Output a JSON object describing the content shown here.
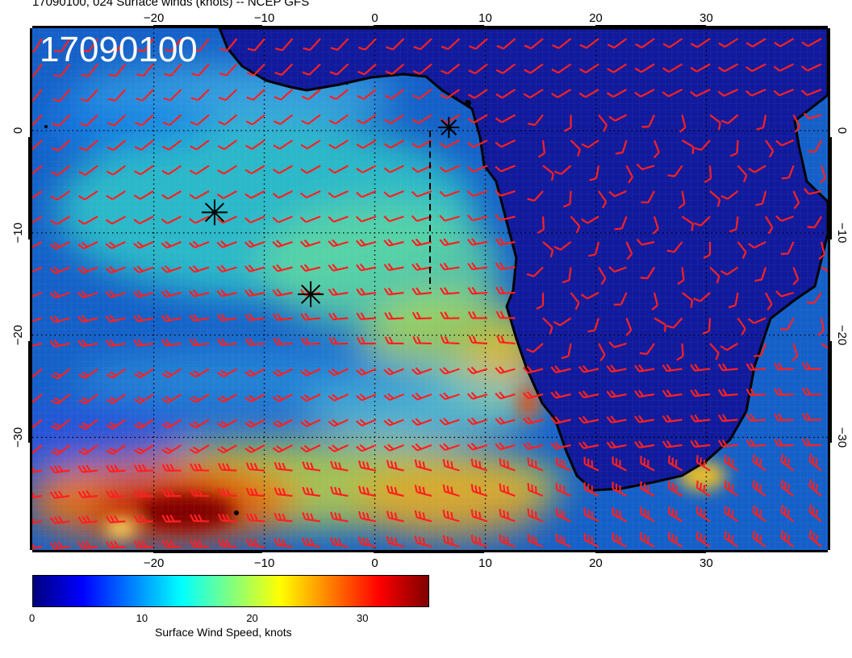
{
  "title": "17090100, 024 Surface winds (knots) -- NCEP GFS",
  "stamp": "17090100",
  "map": {
    "lon_range": [
      -31,
      41
    ],
    "lat_range": [
      -41,
      10
    ],
    "lon_ticks": [
      -20,
      -10,
      0,
      10,
      20,
      30
    ],
    "lat_ticks": [
      0,
      -10,
      -20,
      -30
    ],
    "lon_tick_labels": [
      "−20",
      "−10",
      "0",
      "10",
      "20",
      "30"
    ],
    "lat_tick_labels": [
      "0",
      "−10",
      "−20",
      "−30"
    ],
    "grid": true,
    "markers": [
      {
        "lon": 6.7,
        "lat": 0.3,
        "size": "small"
      },
      {
        "lon": -14.5,
        "lat": -8.0,
        "size": "large"
      },
      {
        "lon": -5.8,
        "lat": -16.0,
        "size": "large"
      }
    ],
    "dashed_line": {
      "lon": 5.0,
      "lat_from": 0.0,
      "lat_to": -15.5
    }
  },
  "colorbar": {
    "label": "Surface Wind Speed, knots",
    "ticks": [
      0,
      10,
      20,
      30
    ],
    "tick_labels": [
      "0",
      "10",
      "20",
      "30"
    ],
    "range": [
      0,
      36
    ],
    "colors": [
      "#00007f",
      "#0000ff",
      "#0080ff",
      "#00ffff",
      "#80ff80",
      "#ffff00",
      "#ff8000",
      "#ff0000",
      "#7f0000"
    ]
  },
  "colors": {
    "ocean_base": "#1560c8",
    "land": "#101aa0",
    "barbs": "#ff2020",
    "coast": "#000000"
  }
}
